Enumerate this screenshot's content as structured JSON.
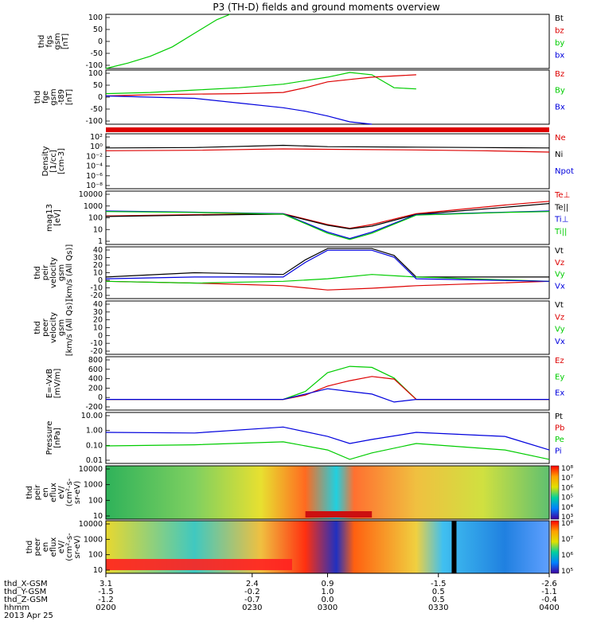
{
  "title": "P3 (TH-D) fields and ground moments overview",
  "colors": {
    "black": "#000000",
    "red": "#dd0000",
    "green": "#00cc00",
    "blue": "#0000dd"
  },
  "panels": [
    {
      "id": "fgs",
      "ylabels": [
        "thd",
        "fgs",
        "gsm",
        "[nT]"
      ],
      "ticks": [
        "100",
        "50",
        "0",
        "-50",
        "-100"
      ],
      "legend": [
        {
          "text": "Bt",
          "c": "black"
        },
        {
          "text": "bz",
          "c": "red"
        },
        {
          "text": "by",
          "c": "green"
        },
        {
          "text": "bx",
          "c": "blue"
        }
      ]
    },
    {
      "id": "fge",
      "ylabels": [
        "thd",
        "fge",
        "gsm",
        "-t89",
        "[nT]"
      ],
      "ticks": [
        "100",
        "50",
        "0",
        "-50",
        "-100"
      ],
      "legend": [
        {
          "text": "Bz",
          "c": "red"
        },
        {
          "text": "By",
          "c": "green"
        },
        {
          "text": "Bx",
          "c": "blue"
        }
      ]
    },
    {
      "id": "density",
      "ylabels": [
        "Density",
        "[1/cc]",
        "[cm-3]"
      ],
      "ticks": [
        "10²",
        "10⁰",
        "10⁻²",
        "10⁻⁴",
        "10⁻⁶",
        "10⁻⁸"
      ],
      "legend": [
        {
          "text": "Ne",
          "c": "red"
        },
        {
          "text": "Ni",
          "c": "black"
        },
        {
          "text": "Npot",
          "c": "blue"
        }
      ]
    },
    {
      "id": "temp",
      "ylabels": [
        "mag13",
        "[eV]"
      ],
      "ticks": [
        "10000",
        "1000",
        "100",
        "10",
        "1"
      ],
      "legend": [
        {
          "text": "Te⊥",
          "c": "red"
        },
        {
          "text": "Te||",
          "c": "black"
        },
        {
          "text": "Ti⊥",
          "c": "blue"
        },
        {
          "text": "Ti||",
          "c": "green"
        }
      ]
    },
    {
      "id": "peir",
      "ylabels": [
        "thd",
        "peir",
        "velocity",
        "gsm",
        "[km/s (All Qs)]"
      ],
      "ticks": [
        "40",
        "30",
        "20",
        "10",
        "0",
        "-10",
        "-20"
      ],
      "legend": [
        {
          "text": "Vt",
          "c": "black"
        },
        {
          "text": "Vz",
          "c": "red"
        },
        {
          "text": "Vy",
          "c": "green"
        },
        {
          "text": "Vx",
          "c": "blue"
        }
      ]
    },
    {
      "id": "peer",
      "ylabels": [
        "thd",
        "peer",
        "velocity",
        "gsm",
        "[km/s (All Qs)]"
      ],
      "ticks": [
        "40",
        "30",
        "20",
        "10",
        "0",
        "-10",
        "-20"
      ],
      "legend": [
        {
          "text": "Vt",
          "c": "black"
        },
        {
          "text": "Vz",
          "c": "red"
        },
        {
          "text": "Vy",
          "c": "green"
        },
        {
          "text": "Vx",
          "c": "blue"
        }
      ]
    },
    {
      "id": "efield",
      "ylabels": [
        "E=-VxB",
        "[mV/m]"
      ],
      "ticks": [
        "800",
        "600",
        "400",
        "200",
        "0",
        "-200"
      ],
      "legend": [
        {
          "text": "Ez",
          "c": "red"
        },
        {
          "text": "Ey",
          "c": "green"
        },
        {
          "text": "Ex",
          "c": "blue"
        }
      ]
    },
    {
      "id": "pressure",
      "ylabels": [
        "Pressure",
        "[nPa]"
      ],
      "ticks": [
        "10.00",
        "1.00",
        "0.10",
        "0.01"
      ],
      "legend": [
        {
          "text": "Pt",
          "c": "black"
        },
        {
          "text": "Pb",
          "c": "red"
        },
        {
          "text": "Pe",
          "c": "green"
        },
        {
          "text": "Pi",
          "c": "blue"
        }
      ]
    },
    {
      "id": "peir_en",
      "ylabels": [
        "thd",
        "peir",
        "en",
        "eflux",
        "eV/",
        "(cm²-s-",
        "sr-eV)"
      ],
      "ticks": [
        "10000",
        "1000",
        "100",
        "10"
      ],
      "cbar": [
        "10⁸",
        "10⁷",
        "10⁶",
        "10⁵",
        "10⁴",
        "10³"
      ]
    },
    {
      "id": "peer_en",
      "ylabels": [
        "thd",
        "peer",
        "en",
        "eflux",
        "eV/",
        "(cm²-s-",
        "sr-eV)"
      ],
      "ticks": [
        "10000",
        "1000",
        "100",
        "10"
      ],
      "cbar": [
        "10⁸",
        "10⁷",
        "10⁶",
        "10⁵"
      ]
    }
  ],
  "xaxis": {
    "rows": [
      {
        "label": "thd_X-GSM",
        "values": [
          "3.1",
          "2.4",
          "0.9",
          "-1.5",
          "-2.6"
        ]
      },
      {
        "label": "thd_Y-GSM",
        "values": [
          "-1.5",
          "-0.2",
          "1.0",
          "0.5",
          "-1.1"
        ]
      },
      {
        "label": "thd_Z-GSM",
        "values": [
          "-1.2",
          "-0.7",
          "0.0",
          "0.5",
          "-0.4"
        ]
      },
      {
        "label": "hhmm",
        "values": [
          "0200",
          "0230",
          "0300",
          "0330",
          "0400"
        ]
      }
    ],
    "date": "2013 Apr 25"
  },
  "chart_data": [
    {
      "type": "line",
      "panel": "fgs",
      "x_range": [
        "0200",
        "0400"
      ],
      "ylim": [
        -100,
        100
      ],
      "series": [
        {
          "name": "by",
          "x": [
            0.0,
            0.05,
            0.1,
            0.15,
            0.2,
            0.25,
            0.28
          ],
          "values": [
            -100,
            -80,
            -55,
            -20,
            30,
            80,
            100
          ]
        }
      ]
    },
    {
      "type": "line",
      "panel": "fge",
      "ylim": [
        -130,
        100
      ],
      "series": [
        {
          "name": "By",
          "x": [
            0,
            0.1,
            0.2,
            0.3,
            0.4,
            0.45,
            0.5,
            0.55,
            0.6,
            0.65,
            0.7
          ],
          "values": [
            0,
            5,
            15,
            25,
            40,
            55,
            70,
            90,
            80,
            25,
            20
          ]
        },
        {
          "name": "Bz",
          "x": [
            0,
            0.1,
            0.2,
            0.3,
            0.4,
            0.45,
            0.5,
            0.55,
            0.6,
            0.65,
            0.7
          ],
          "values": [
            -10,
            -5,
            -2,
            0,
            5,
            25,
            50,
            60,
            70,
            75,
            80
          ]
        },
        {
          "name": "Bx",
          "x": [
            0,
            0.1,
            0.2,
            0.3,
            0.4,
            0.45,
            0.5,
            0.55,
            0.6
          ],
          "values": [
            -10,
            -15,
            -20,
            -40,
            -60,
            -75,
            -95,
            -120,
            -130
          ]
        }
      ]
    },
    {
      "type": "line",
      "panel": "density",
      "log": true,
      "ylim": [
        1e-09,
        1000.0
      ],
      "series": [
        {
          "name": "Ni",
          "x": [
            0,
            0.2,
            0.4,
            0.5,
            0.7,
            0.85,
            1
          ],
          "values": [
            0.8,
            1,
            3,
            1.5,
            1.2,
            1,
            0.8
          ]
        },
        {
          "name": "Ne",
          "x": [
            0,
            0.2,
            0.4,
            0.5,
            0.7,
            0.85,
            1
          ],
          "values": [
            0.2,
            0.25,
            0.5,
            0.4,
            0.3,
            0.2,
            0.1
          ]
        }
      ]
    },
    {
      "type": "line",
      "panel": "temp",
      "log": true,
      "ylim": [
        1,
        20000
      ],
      "series": [
        {
          "name": "Te⊥",
          "x": [
            0,
            0.2,
            0.4,
            0.5,
            0.55,
            0.6,
            0.7,
            0.9,
            1
          ],
          "values": [
            200,
            250,
            300,
            40,
            20,
            40,
            300,
            1500,
            3000
          ]
        },
        {
          "name": "Te||",
          "x": [
            0,
            0.2,
            0.4,
            0.5,
            0.55,
            0.6,
            0.7,
            0.9,
            1
          ],
          "values": [
            180,
            230,
            280,
            35,
            18,
            30,
            260,
            1000,
            2000
          ]
        },
        {
          "name": "Ti⊥",
          "x": [
            0,
            0.2,
            0.4,
            0.5,
            0.55,
            0.6,
            0.7,
            0.9,
            1
          ],
          "values": [
            500,
            400,
            300,
            10,
            3,
            10,
            250,
            400,
            500
          ]
        },
        {
          "name": "Ti||",
          "x": [
            0,
            0.2,
            0.4,
            0.5,
            0.55,
            0.6,
            0.7,
            0.9,
            1
          ],
          "values": [
            450,
            380,
            280,
            8,
            2.5,
            8,
            230,
            380,
            450
          ]
        }
      ]
    },
    {
      "type": "line",
      "panel": "peir",
      "ylim": [
        -20,
        40
      ],
      "series": [
        {
          "name": "Vt",
          "x": [
            0,
            0.2,
            0.4,
            0.45,
            0.5,
            0.6,
            0.65,
            0.7,
            1
          ],
          "values": [
            5,
            10,
            8,
            25,
            38,
            38,
            30,
            5,
            5
          ]
        },
        {
          "name": "Vz",
          "x": [
            0,
            0.2,
            0.4,
            0.5,
            0.6,
            0.7,
            1
          ],
          "values": [
            0,
            -2,
            -5,
            -10,
            -8,
            -5,
            0
          ]
        },
        {
          "name": "Vy",
          "x": [
            0,
            0.2,
            0.4,
            0.5,
            0.6,
            0.7,
            1
          ],
          "values": [
            0,
            -2,
            0,
            3,
            8,
            5,
            0
          ]
        },
        {
          "name": "Vx",
          "x": [
            0,
            0.2,
            0.4,
            0.45,
            0.5,
            0.6,
            0.65,
            0.7,
            1
          ],
          "values": [
            3,
            5,
            5,
            22,
            36,
            36,
            28,
            3,
            0
          ]
        }
      ]
    },
    {
      "type": "line",
      "panel": "efield",
      "ylim": [
        -200,
        800
      ],
      "series": [
        {
          "name": "Ey",
          "x": [
            0,
            0.4,
            0.45,
            0.5,
            0.55,
            0.6,
            0.65,
            0.7,
            1
          ],
          "values": [
            0,
            0,
            150,
            500,
            620,
            600,
            400,
            0,
            0
          ]
        },
        {
          "name": "Ez",
          "x": [
            0,
            0.4,
            0.45,
            0.5,
            0.55,
            0.6,
            0.65,
            0.7,
            1
          ],
          "values": [
            0,
            0,
            80,
            250,
            350,
            430,
            380,
            0,
            0
          ]
        },
        {
          "name": "Ex",
          "x": [
            0,
            0.4,
            0.45,
            0.5,
            0.55,
            0.6,
            0.65,
            0.7,
            1
          ],
          "values": [
            0,
            0,
            100,
            200,
            150,
            100,
            -50,
            0,
            0
          ]
        }
      ]
    },
    {
      "type": "line",
      "panel": "pressure",
      "log": true,
      "ylim": [
        0.005,
        30
      ],
      "series": [
        {
          "name": "Pi",
          "x": [
            0,
            0.2,
            0.4,
            0.5,
            0.55,
            0.6,
            0.7,
            0.9,
            1
          ],
          "values": [
            1,
            0.9,
            2.5,
            0.5,
            0.15,
            0.3,
            1,
            0.5,
            0.05
          ]
        },
        {
          "name": "Pe",
          "x": [
            0,
            0.2,
            0.4,
            0.5,
            0.55,
            0.6,
            0.7,
            0.9,
            1
          ],
          "values": [
            0.1,
            0.12,
            0.2,
            0.05,
            0.01,
            0.03,
            0.15,
            0.05,
            0.01
          ]
        }
      ]
    },
    {
      "type": "heatmap",
      "panel": "peir_en",
      "x_range": [
        "0200",
        "0400"
      ],
      "y_range_eV": [
        10,
        20000
      ]
    },
    {
      "type": "heatmap",
      "panel": "peer_en",
      "x_range": [
        "0200",
        "0400"
      ],
      "y_range_eV": [
        10,
        20000
      ]
    }
  ]
}
